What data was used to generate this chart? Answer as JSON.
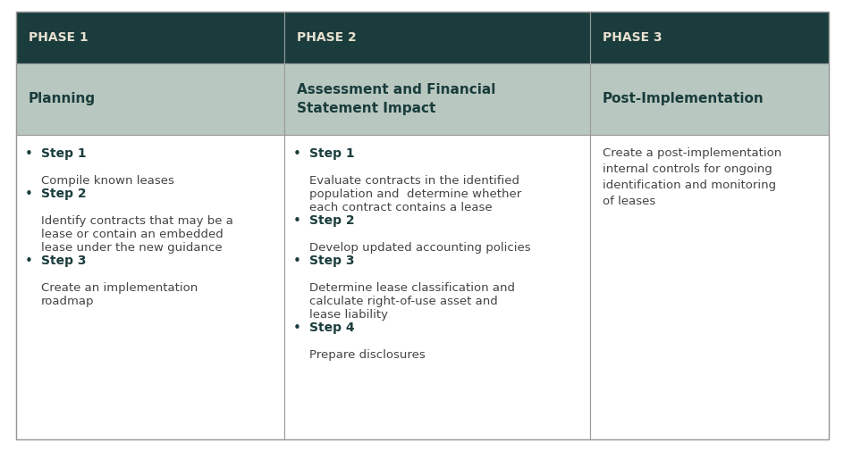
{
  "header_bg_color": "#1a3c3c",
  "header_text_color": "#e8e0d0",
  "subheader_bg_color": "#b8c8c0",
  "subheader_text_color": "#1a3c3c",
  "body_bg_color": "#ffffff",
  "body_text_color": "#444444",
  "border_color": "#999999",
  "headers": [
    "PHASE 1",
    "PHASE 2",
    "PHASE 3"
  ],
  "subheaders": [
    "Planning",
    "Assessment and Financial\nStatement Impact",
    "Post-Implementation"
  ],
  "col1_body": [
    {
      "step": "Step 1",
      "desc": "Compile known leases"
    },
    {
      "step": "Step 2",
      "desc": "Identify contracts that may be a\nlease or contain an embedded\nlease under the new guidance"
    },
    {
      "step": "Step 3",
      "desc": "Create an implementation\nroadmap"
    }
  ],
  "col2_body": [
    {
      "step": "Step 1",
      "desc": "Evaluate contracts in the identified\npopulation and  determine whether\neach contract contains a lease"
    },
    {
      "step": "Step 2",
      "desc": "Develop updated accounting policies"
    },
    {
      "step": "Step 3",
      "desc": "Determine lease classification and\ncalculate right-of-use asset and\nlease liability"
    },
    {
      "step": "Step 4",
      "desc": "Prepare disclosures"
    }
  ],
  "col3_body": "Create a post-implementation\ninternal controls for ongoing\nidentification and monitoring\nof leases",
  "fig_bg_color": "#ffffff",
  "header_fontsize": 10,
  "subheader_fontsize": 11,
  "body_fontsize": 10,
  "step_fontsize": 10
}
